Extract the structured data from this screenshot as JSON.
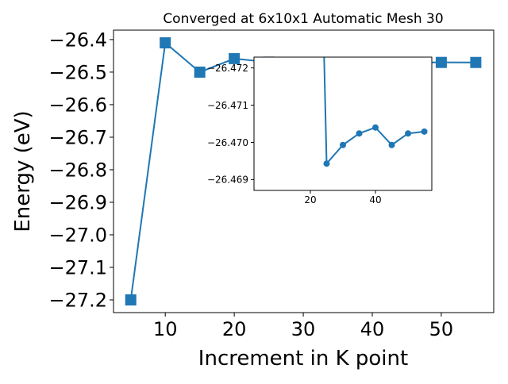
{
  "chart_data": [
    {
      "type": "line",
      "title": "Converged at 6x10x1 Automatic Mesh 30",
      "xlabel": "Increment in K point",
      "ylabel": "Energy (eV)",
      "x": [
        5,
        10,
        15,
        20,
        25,
        30,
        35,
        40,
        45,
        50,
        55
      ],
      "values": [
        -27.2,
        -26.41,
        -26.5,
        -26.4585,
        -26.4694,
        -26.4699,
        -26.4702,
        -26.4704,
        -26.4699,
        -26.4702,
        -26.4703
      ],
      "marker": "square",
      "color": "#1f77b4",
      "xlim": [
        2.5,
        57.6
      ],
      "ylim": [
        -27.239,
        -26.371
      ],
      "xticks": [
        10,
        20,
        30,
        40,
        50
      ],
      "xtick_labels": [
        "10",
        "20",
        "30",
        "40",
        "50"
      ],
      "yticks": [
        -26.4,
        -26.5,
        -26.6,
        -26.7,
        -26.8,
        -26.9,
        -27.0,
        -27.1,
        -27.2
      ],
      "ytick_labels": [
        "−26.4",
        "−26.5",
        "−26.6",
        "−26.7",
        "−26.8",
        "−26.9",
        "−27.0",
        "−27.1",
        "−27.2"
      ],
      "grid": false
    },
    {
      "type": "line",
      "role": "inset",
      "x": [
        25,
        30,
        35,
        40,
        45,
        50,
        55
      ],
      "values": [
        -26.46943,
        -26.46993,
        -26.47024,
        -26.4704,
        -26.46993,
        -26.47024,
        -26.47029
      ],
      "marker": "circle",
      "color": "#1f77b4",
      "xlim": [
        2.7,
        57.3
      ],
      "ylim": [
        -26.46871,
        -26.47229
      ],
      "y_inverted": true,
      "xticks": [
        20,
        40
      ],
      "xtick_labels": [
        "20",
        "40"
      ],
      "yticks": [
        -26.472,
        -26.471,
        -26.47,
        -26.469
      ],
      "ytick_labels": [
        "−26.472",
        "−26.471",
        "−26.470",
        "−26.469"
      ],
      "grid": false
    }
  ]
}
